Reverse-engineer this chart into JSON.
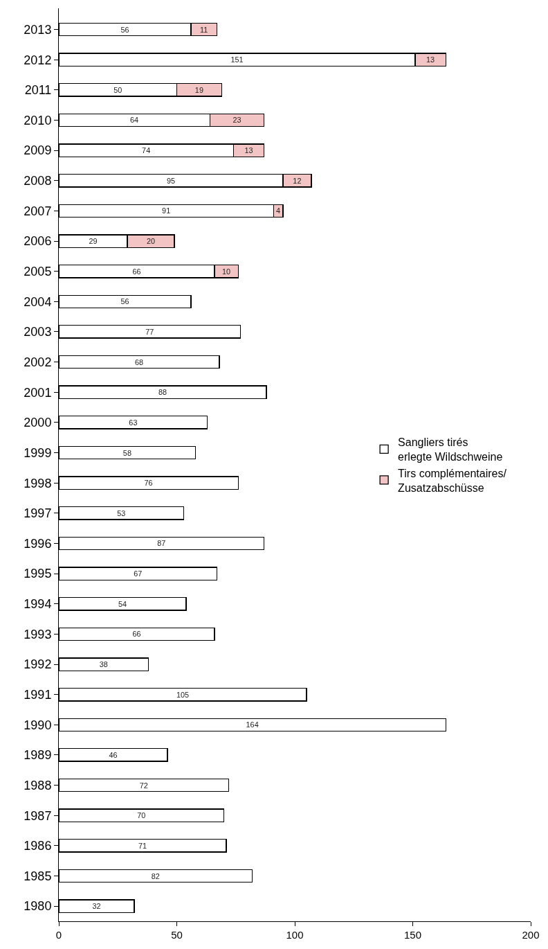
{
  "chart_data": {
    "type": "bar",
    "orientation": "horizontal",
    "stacked": true,
    "data_labels": true,
    "legend": "right",
    "categories": [
      "2013",
      "2012",
      "2011",
      "2010",
      "2009",
      "2008",
      "2007",
      "2006",
      "2005",
      "2004",
      "2003",
      "2002",
      "2001",
      "2000",
      "1999",
      "1998",
      "1997",
      "1996",
      "1995",
      "1994",
      "1993",
      "1992",
      "1991",
      "1990",
      "1989",
      "1988",
      "1987",
      "1986",
      "1985",
      "1980"
    ],
    "series": [
      {
        "name": "Sangliers tirés\nerlegte Wildschweine",
        "color": "#ffffff",
        "values": [
          56,
          151,
          50,
          64,
          74,
          95,
          91,
          29,
          66,
          56,
          77,
          68,
          88,
          63,
          58,
          76,
          53,
          87,
          67,
          54,
          66,
          38,
          105,
          164,
          46,
          72,
          70,
          71,
          82,
          32
        ]
      },
      {
        "name": "Tirs complémentaires/\nZusatzabschüsse",
        "color": "#f2c4c4",
        "values": [
          11,
          13,
          19,
          23,
          13,
          12,
          4,
          20,
          10,
          null,
          null,
          null,
          null,
          null,
          null,
          null,
          null,
          null,
          null,
          null,
          null,
          null,
          null,
          null,
          null,
          null,
          null,
          null,
          null,
          null
        ]
      }
    ],
    "xlim": [
      0,
      200
    ],
    "xticks": [
      0,
      50,
      100,
      150,
      200
    ]
  }
}
